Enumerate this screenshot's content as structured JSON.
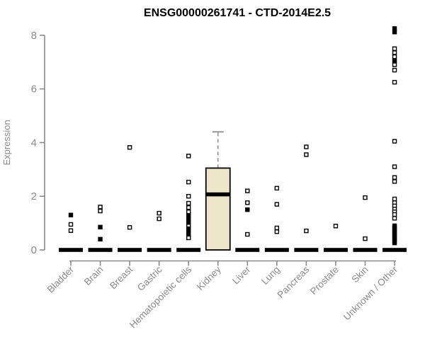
{
  "chart_data": {
    "type": "boxplot",
    "title": "ENSG00000261741 - CTD-2014E2.5",
    "ylabel": "Expression",
    "xlabel": "",
    "ylim": [
      0,
      8
    ],
    "yticks": [
      0,
      2,
      4,
      6,
      8
    ],
    "grid": false,
    "legend": "none",
    "colors": {
      "title": "#000000",
      "axis": "#8a8a8a",
      "tick_label": "#8a8a8a",
      "point": "#000000",
      "zero_bar": "#000000",
      "box_fill": "#ece7cb",
      "box_stroke": "#000000",
      "background": "#ffffff"
    },
    "categories": [
      "Bladder",
      "Brain",
      "Breast",
      "Gastric",
      "Hematopoietic cells",
      "Kidney",
      "Liver",
      "Lung",
      "Pancreas",
      "Prostate",
      "Skin",
      "Unknown / Other"
    ],
    "collapsed_box_value": 0,
    "series": [
      {
        "category": "Bladder",
        "collapsed": true,
        "points": [
          {
            "value": 1.3,
            "solid": true
          },
          {
            "value": 0.95,
            "solid": false
          },
          {
            "value": 0.72,
            "solid": false
          }
        ]
      },
      {
        "category": "Brain",
        "collapsed": true,
        "points": [
          {
            "value": 1.6,
            "solid": false
          },
          {
            "value": 1.45,
            "solid": false
          },
          {
            "value": 0.85,
            "solid": true
          },
          {
            "value": 0.4,
            "solid": true
          }
        ]
      },
      {
        "category": "Breast",
        "collapsed": true,
        "points": [
          {
            "value": 3.82,
            "solid": false
          },
          {
            "value": 0.84,
            "solid": false
          }
        ]
      },
      {
        "category": "Gastric",
        "collapsed": true,
        "points": [
          {
            "value": 1.37,
            "solid": false
          },
          {
            "value": 1.16,
            "solid": false
          }
        ]
      },
      {
        "category": "Hematopoietic cells",
        "collapsed": true,
        "points": [
          {
            "value": 3.5,
            "solid": false
          },
          {
            "value": 2.53,
            "solid": false
          },
          {
            "value": 2.0,
            "solid": false
          },
          {
            "value": 1.74,
            "solid": false
          },
          {
            "value": 1.58,
            "solid": false
          },
          {
            "value": 1.42,
            "solid": false
          },
          {
            "value": 1.29,
            "solid": true
          },
          {
            "value": 1.16,
            "solid": true
          },
          {
            "value": 1.05,
            "solid": true
          },
          {
            "value": 0.89,
            "solid": false
          },
          {
            "value": 0.79,
            "solid": true
          },
          {
            "value": 0.68,
            "solid": true
          },
          {
            "value": 0.55,
            "solid": true
          },
          {
            "value": 0.45,
            "solid": false
          }
        ]
      },
      {
        "category": "Kidney",
        "collapsed": false,
        "box": {
          "whisker_high": 4.4,
          "q3": 3.05,
          "median": 2.07,
          "q1": 0,
          "whisker_low": 0
        },
        "points": []
      },
      {
        "category": "Liver",
        "collapsed": true,
        "points": [
          {
            "value": 2.2,
            "solid": false
          },
          {
            "value": 1.76,
            "solid": false
          },
          {
            "value": 1.5,
            "solid": true
          },
          {
            "value": 0.58,
            "solid": false
          }
        ]
      },
      {
        "category": "Lung",
        "collapsed": true,
        "points": [
          {
            "value": 2.3,
            "solid": false
          },
          {
            "value": 1.7,
            "solid": false
          },
          {
            "value": 0.82,
            "solid": false
          },
          {
            "value": 0.68,
            "solid": false
          }
        ]
      },
      {
        "category": "Pancreas",
        "collapsed": true,
        "points": [
          {
            "value": 3.84,
            "solid": false
          },
          {
            "value": 3.55,
            "solid": false
          },
          {
            "value": 0.71,
            "solid": false
          }
        ]
      },
      {
        "category": "Prostate",
        "collapsed": true,
        "points": [
          {
            "value": 0.89,
            "solid": false
          }
        ]
      },
      {
        "category": "Skin",
        "collapsed": true,
        "points": [
          {
            "value": 1.95,
            "solid": false
          },
          {
            "value": 0.42,
            "solid": false
          }
        ]
      },
      {
        "category": "Unknown / Other",
        "collapsed": true,
        "points": [
          {
            "value": 8.25,
            "solid": true
          },
          {
            "value": 8.12,
            "solid": true
          },
          {
            "value": 7.5,
            "solid": false
          },
          {
            "value": 7.35,
            "solid": false
          },
          {
            "value": 7.2,
            "solid": false
          },
          {
            "value": 7.05,
            "solid": true
          },
          {
            "value": 6.9,
            "solid": false
          },
          {
            "value": 6.7,
            "solid": false
          },
          {
            "value": 6.25,
            "solid": false
          },
          {
            "value": 4.05,
            "solid": false
          },
          {
            "value": 3.1,
            "solid": false
          },
          {
            "value": 2.7,
            "solid": false
          },
          {
            "value": 2.55,
            "solid": false
          },
          {
            "value": 1.9,
            "solid": false
          },
          {
            "value": 1.76,
            "solid": false
          },
          {
            "value": 1.64,
            "solid": false
          },
          {
            "value": 1.52,
            "solid": false
          },
          {
            "value": 1.42,
            "solid": false
          },
          {
            "value": 1.32,
            "solid": false
          },
          {
            "value": 1.18,
            "solid": false
          },
          {
            "value": 0.9,
            "solid": true
          },
          {
            "value": 0.82,
            "solid": true
          },
          {
            "value": 0.74,
            "solid": true
          },
          {
            "value": 0.66,
            "solid": true
          },
          {
            "value": 0.58,
            "solid": true
          },
          {
            "value": 0.5,
            "solid": true
          },
          {
            "value": 0.42,
            "solid": true
          },
          {
            "value": 0.34,
            "solid": true
          },
          {
            "value": 0.26,
            "solid": true
          }
        ]
      }
    ]
  }
}
